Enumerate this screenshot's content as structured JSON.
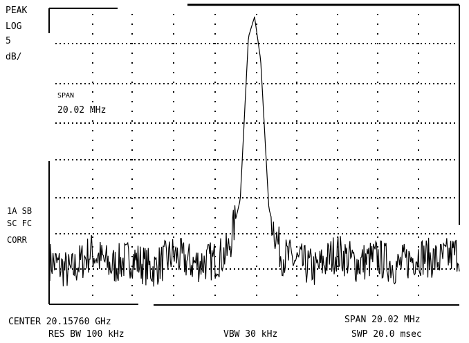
{
  "display": {
    "detector": "PEAK",
    "scale": "LOG",
    "scale_value": "5",
    "scale_unit": "dB/"
  },
  "marker": {
    "label": "SPAN",
    "value": "20.02 MHz"
  },
  "left_annotations": [
    "1A SB",
    "SC FC",
    "CORR"
  ],
  "footer": {
    "center": "CENTER 20.15760 GHz",
    "rbw": "RES BW 100 kHz",
    "vbw": "VBW 30 kHz",
    "span": "SPAN 20.02 MHz",
    "sweep": "SWP 20.0 msec"
  },
  "colors": {
    "trace": "#000000",
    "background": "#ffffff"
  },
  "chart_data": {
    "type": "line",
    "title": "",
    "xlabel": "",
    "ylabel": "",
    "x_range_mhz": [
      20147.59,
      20167.61
    ],
    "y_range_divisions": [
      0,
      10
    ],
    "grid": "dotted",
    "series": [
      {
        "points": [
          [
            20147.59,
            1.5
          ],
          [
            20148.6,
            1.1
          ],
          [
            20149.6,
            1.8
          ],
          [
            20150.6,
            1.3
          ],
          [
            20151.6,
            1.6
          ],
          [
            20152.6,
            1.2
          ],
          [
            20153.6,
            1.7
          ],
          [
            20154.6,
            1.4
          ],
          [
            20155.6,
            1.5
          ],
          [
            20156.3,
            1.8
          ],
          [
            20156.9,
            3.6
          ],
          [
            20157.3,
            9.2
          ],
          [
            20157.6,
            9.9
          ],
          [
            20157.9,
            8.4
          ],
          [
            20158.3,
            3.3
          ],
          [
            20158.9,
            1.7
          ],
          [
            20159.6,
            1.5
          ],
          [
            20160.6,
            1.2
          ],
          [
            20161.6,
            1.8
          ],
          [
            20162.6,
            1.4
          ],
          [
            20163.6,
            1.6
          ],
          [
            20164.6,
            1.3
          ],
          [
            20165.6,
            1.7
          ],
          [
            20166.6,
            1.5
          ],
          [
            20167.61,
            1.8
          ]
        ]
      }
    ]
  }
}
